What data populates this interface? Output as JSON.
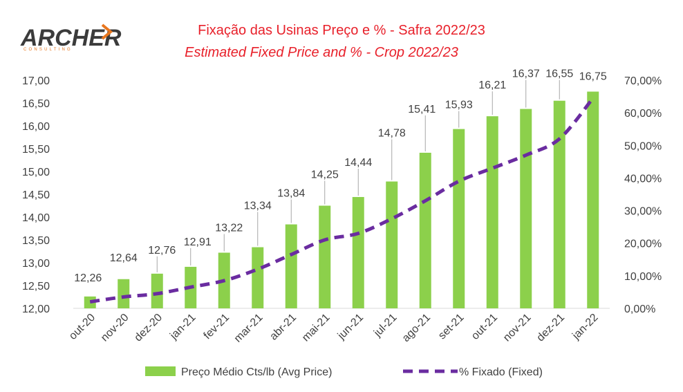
{
  "logo": {
    "text": "ARCHER",
    "sub": "CONSULTING",
    "accent": "#e8761e"
  },
  "chart_data": {
    "type": "bar+line",
    "title": "Fixação das Usinas Preço e % - Safra 2022/23",
    "subtitle": "Estimated Fixed Price and % - Crop 2022/23",
    "categories": [
      "out-20",
      "nov-20",
      "dez-20",
      "jan-21",
      "fev-21",
      "mar-21",
      "abr-21",
      "mai-21",
      "jun-21",
      "jul-21",
      "ago-21",
      "set-21",
      "out-21",
      "nov-21",
      "dez-21",
      "jan-22"
    ],
    "series": [
      {
        "name": "Preço Médio Cts/lb (Avg Price)",
        "type": "bar",
        "axis": "left",
        "color": "#8cd04b",
        "values": [
          12.26,
          12.64,
          12.76,
          12.91,
          13.22,
          13.34,
          13.84,
          14.25,
          14.44,
          14.78,
          15.41,
          15.93,
          16.21,
          16.37,
          16.55,
          16.75
        ],
        "labels": [
          "12,26",
          "12,64",
          "12,76",
          "12,91",
          "13,22",
          "13,34",
          "13,84",
          "14,25",
          "14,44",
          "14,78",
          "15,41",
          "15,93",
          "16,21",
          "16,37",
          "16,55",
          "16,75"
        ]
      },
      {
        "name": "% Fixado (Fixed)",
        "type": "line",
        "style": "dashed",
        "axis": "right",
        "color": "#6a2ca0",
        "values": [
          2.0,
          3.5,
          4.5,
          6.5,
          8.5,
          12.0,
          16.5,
          21.0,
          23.0,
          27.5,
          33.0,
          39.0,
          43.0,
          47.0,
          52.0,
          64.5
        ]
      }
    ],
    "y_left": {
      "min": 12.0,
      "max": 17.0,
      "ticks": [
        "12,00",
        "12,50",
        "13,00",
        "13,50",
        "14,00",
        "14,50",
        "15,00",
        "15,50",
        "16,00",
        "16,50",
        "17,00"
      ]
    },
    "y_right": {
      "min": 0,
      "max": 70,
      "ticks": [
        "0,00%",
        "10,00%",
        "20,00%",
        "30,00%",
        "40,00%",
        "50,00%",
        "60,00%",
        "70,00%"
      ]
    },
    "grid": false,
    "legend": "bottom"
  }
}
